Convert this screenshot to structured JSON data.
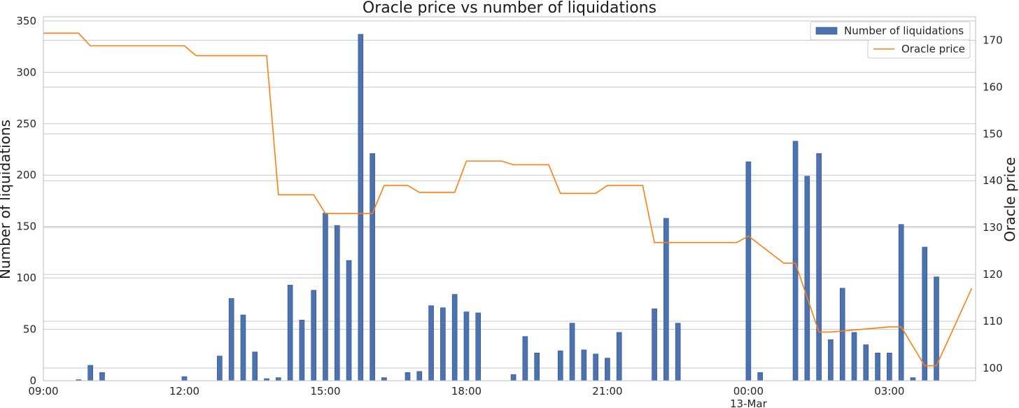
{
  "chart_data": {
    "type": "bar+line",
    "title": "Oracle price vs number of liquidations",
    "ylabel_left": "Number of liquidations",
    "ylabel_right": "Oracle price",
    "x_range": [
      "09:00",
      "04:50"
    ],
    "x_ticks": [
      "09:00",
      "12:00",
      "15:00",
      "18:00",
      "21:00",
      "00:00",
      "03:00"
    ],
    "x_tick_sublabel": {
      "tick": "00:00",
      "text": "13-Mar"
    },
    "y_left_ticks": [
      0,
      50,
      100,
      150,
      200,
      250,
      300,
      350
    ],
    "y_left_range": [
      0,
      354
    ],
    "y_right_ticks": [
      100,
      110,
      120,
      130,
      140,
      150,
      160,
      170
    ],
    "y_right_range": [
      97.3,
      175
    ],
    "grid": "horizontal",
    "legend_position": "top-right",
    "legend": [
      "Number of liquidations",
      "Oracle price"
    ],
    "colors": {
      "bars": "#4c72b0",
      "bars_edge": "#2f4f8f",
      "line": "#ff7f0e",
      "grid": "#c8c8c8",
      "frame": "#bfbfbf"
    },
    "series": [
      {
        "name": "Number of liquidations",
        "kind": "bar",
        "x": [
          "09:45",
          "10:00",
          "10:15",
          "12:00",
          "12:45",
          "13:00",
          "13:15",
          "13:30",
          "13:45",
          "14:00",
          "14:15",
          "14:30",
          "14:45",
          "15:00",
          "15:15",
          "15:30",
          "15:45",
          "16:00",
          "16:15",
          "16:45",
          "17:00",
          "17:15",
          "17:30",
          "17:45",
          "18:00",
          "18:15",
          "19:00",
          "19:15",
          "19:30",
          "20:00",
          "20:15",
          "20:30",
          "20:45",
          "21:00",
          "21:15",
          "22:00",
          "22:15",
          "22:30",
          "00:00",
          "00:15",
          "01:00",
          "01:15",
          "01:30",
          "01:45",
          "02:00",
          "02:15",
          "02:30",
          "02:45",
          "03:00",
          "03:15",
          "03:30",
          "03:45",
          "04:00"
        ],
        "values": [
          1,
          15,
          8,
          4,
          24,
          80,
          64,
          28,
          2,
          3,
          93,
          59,
          88,
          163,
          151,
          117,
          337,
          221,
          3,
          8,
          9,
          73,
          71,
          84,
          67,
          66,
          6,
          43,
          27,
          29,
          56,
          30,
          26,
          22,
          47,
          70,
          158,
          56,
          213,
          8,
          233,
          199,
          221,
          40,
          90,
          47,
          35,
          27,
          27,
          152,
          3,
          130,
          101
        ]
      },
      {
        "name": "Oracle price",
        "kind": "line",
        "x": [
          "09:00",
          "09:45",
          "10:00",
          "12:00",
          "12:15",
          "13:45",
          "14:00",
          "14:45",
          "15:00",
          "16:00",
          "16:15",
          "16:45",
          "17:00",
          "17:45",
          "18:00",
          "18:45",
          "19:00",
          "19:45",
          "20:00",
          "20:45",
          "21:00",
          "21:45",
          "22:00",
          "23:45",
          "00:00",
          "00:45",
          "01:00",
          "01:30",
          "01:45",
          "03:00",
          "03:15",
          "03:45",
          "04:00",
          "04:45"
        ],
        "values": [
          171.5,
          171.5,
          168.8,
          168.8,
          166.7,
          166.7,
          137.0,
          137.0,
          133.0,
          133.0,
          139.0,
          139.0,
          137.5,
          137.5,
          144.2,
          144.2,
          143.4,
          143.4,
          137.3,
          137.3,
          139.0,
          139.0,
          126.8,
          126.8,
          128.2,
          122.4,
          122.4,
          107.7,
          107.7,
          108.8,
          108.8,
          100.5,
          100.5,
          117.0
        ]
      }
    ]
  }
}
